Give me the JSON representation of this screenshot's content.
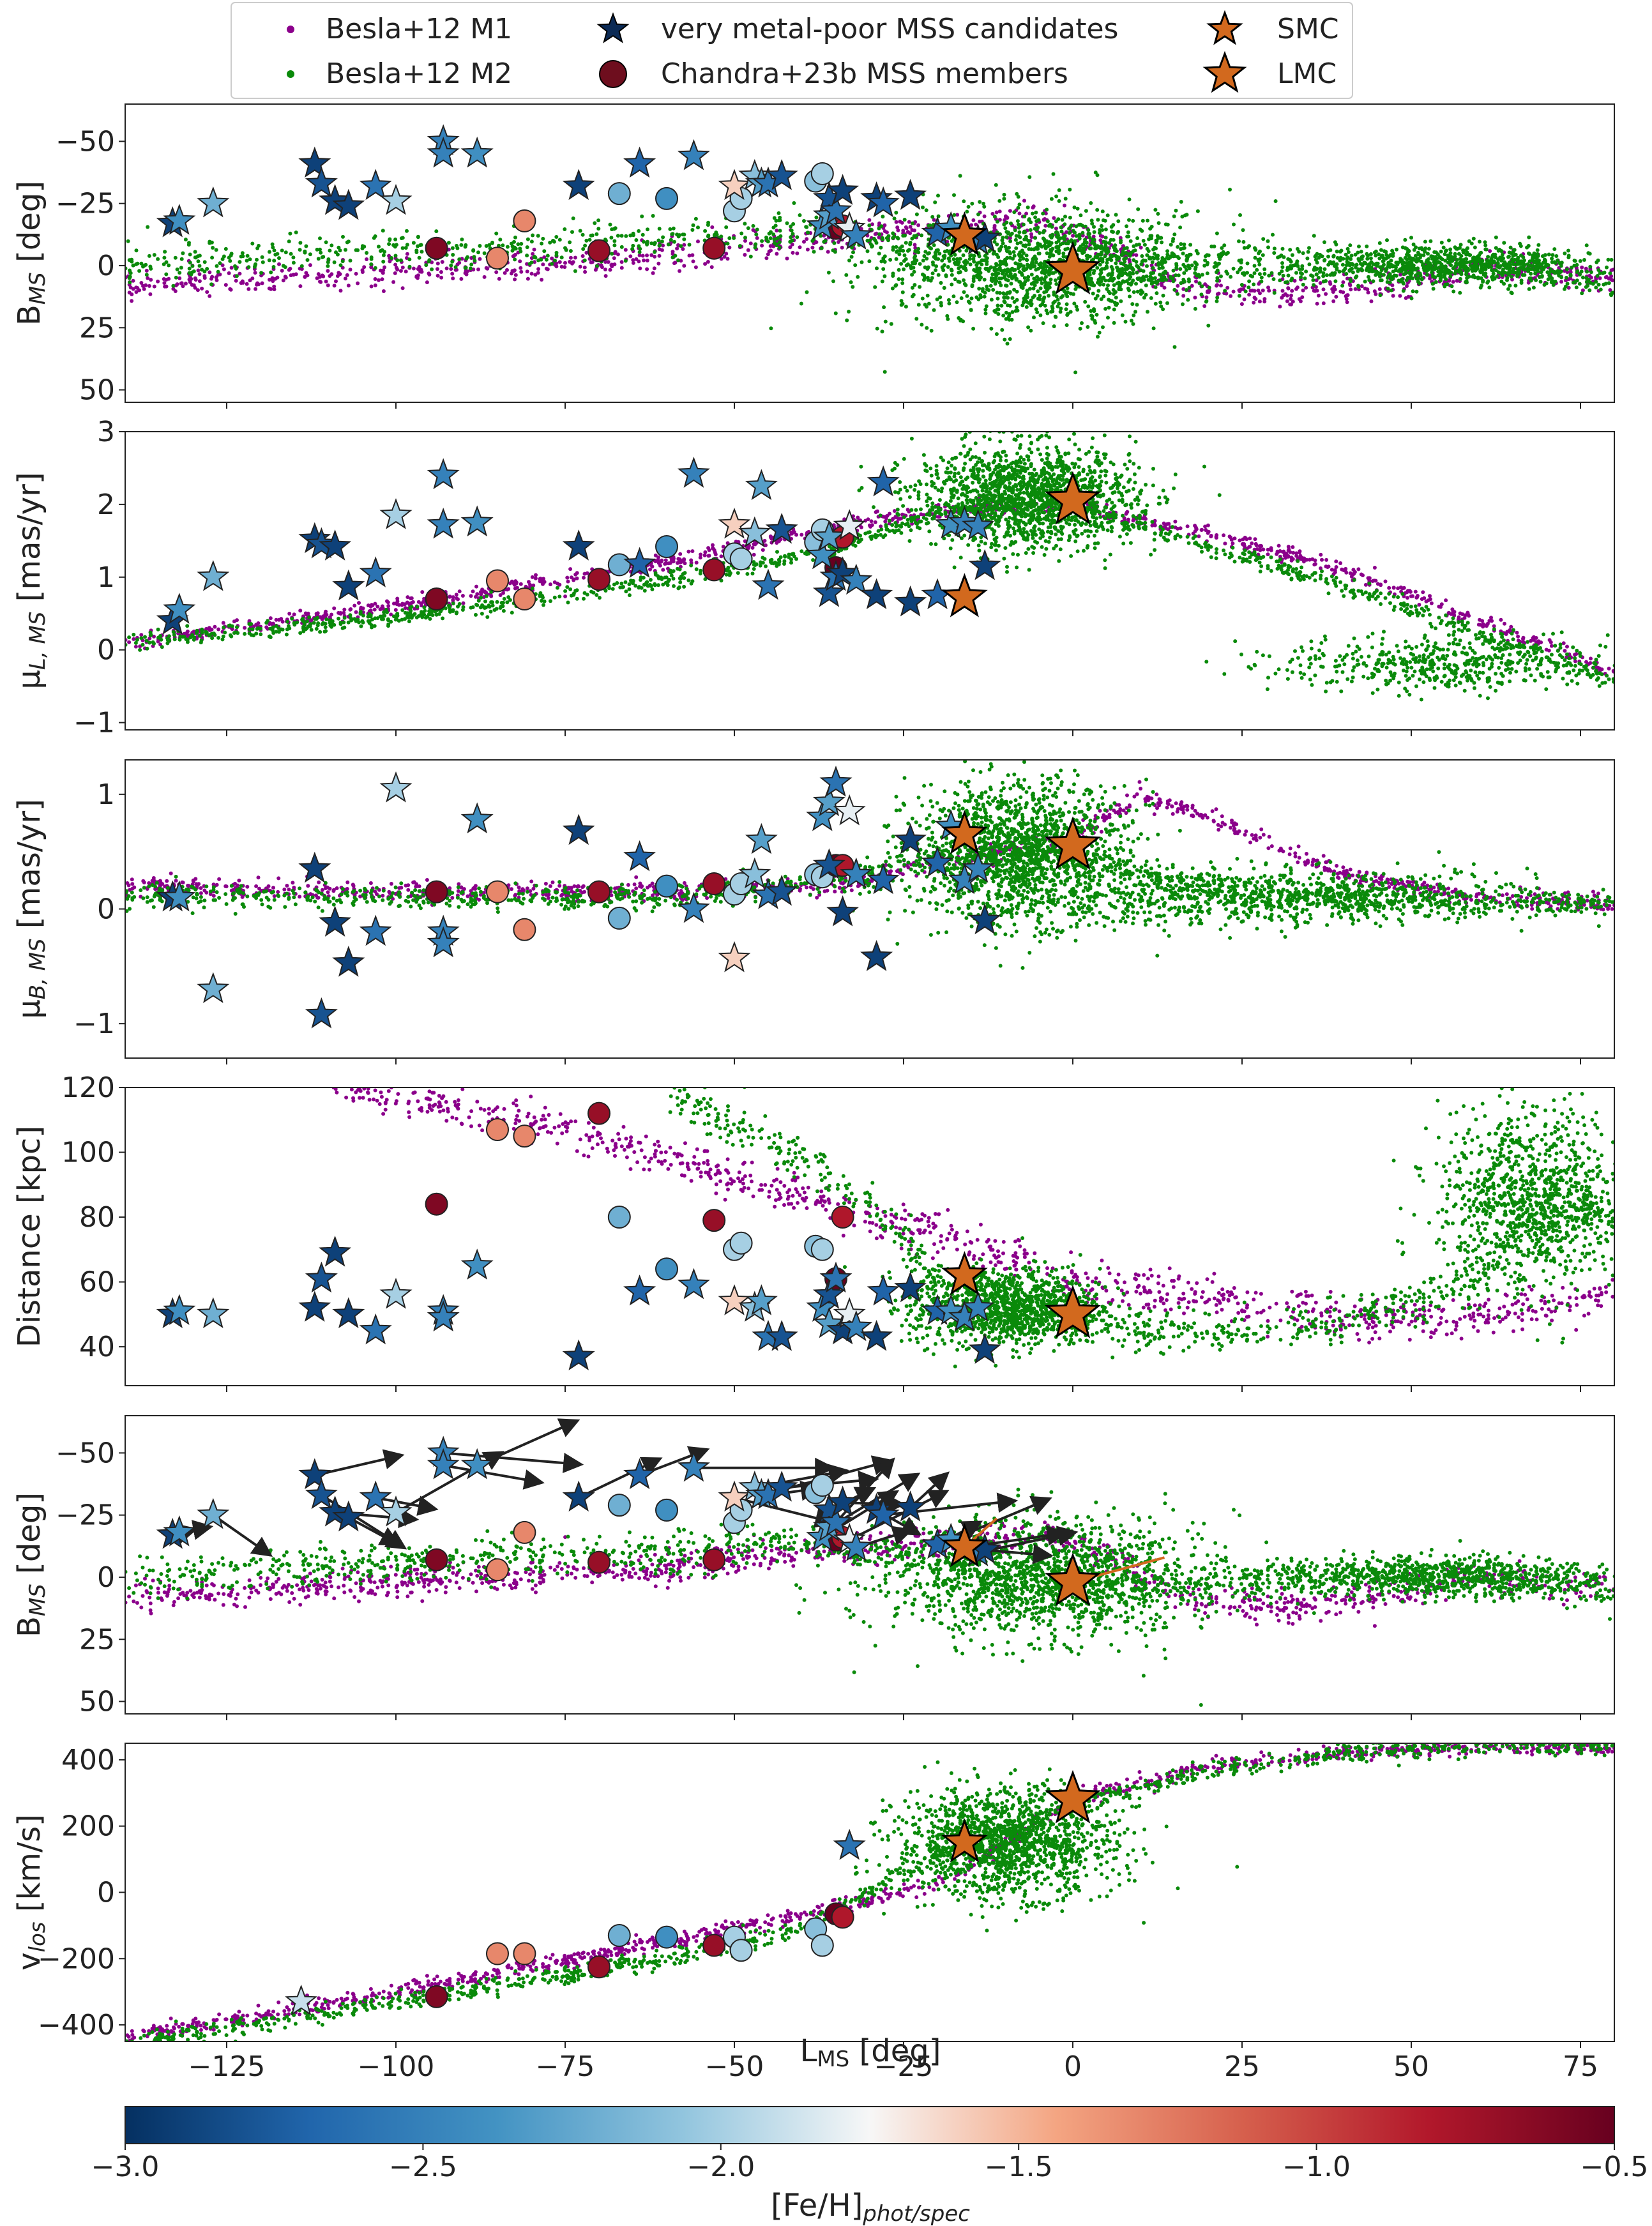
{
  "figure": {
    "legend": {
      "entries": [
        {
          "label": "Besla+12 M1",
          "marker": "dot",
          "color": "#8b008b"
        },
        {
          "label": "Besla+12 M2",
          "marker": "dot",
          "color": "#0a8a0a"
        },
        {
          "label": "very metal-poor MSS candidates",
          "marker": "star",
          "color": "#0b2a55"
        },
        {
          "label": "Chandra+23b MSS members",
          "marker": "circle",
          "color": "#6e0e1e"
        },
        {
          "label": "SMC",
          "marker": "star",
          "color": "#d2691e"
        },
        {
          "label": "LMC",
          "marker": "star",
          "color": "#d2691e"
        }
      ]
    },
    "x_axis": {
      "label": "L",
      "label_sub": "MS",
      "label_suffix": " [deg]",
      "ticks": [
        "−125",
        "−100",
        "−75",
        "−50",
        "−25",
        "0",
        "25",
        "50",
        "75"
      ]
    },
    "colorbar": {
      "label": "[Fe/H]",
      "label_sub": "phot/spec",
      "range": [
        -3.0,
        -0.5
      ],
      "ticks": [
        "−3.0",
        "−2.5",
        "−2.0",
        "−1.5",
        "−1.0",
        "−0.5"
      ],
      "colormap": "RdBu_r"
    },
    "panel_labels": [
      {
        "main": "B",
        "sub": "MS",
        "suffix": " [deg]"
      },
      {
        "main": "μ",
        "sub": "L, MS",
        "suffix": " [mas/yr]"
      },
      {
        "main": "μ",
        "sub": "B, MS",
        "suffix": " [mas/yr]"
      },
      {
        "main": "Distance [kpc]",
        "sub": "",
        "suffix": ""
      },
      {
        "main": "B",
        "sub": "MS",
        "suffix": " [deg]"
      },
      {
        "main": "v",
        "sub": "los",
        "suffix": " [km/s]"
      }
    ]
  },
  "chart_data": {
    "type": "scatter",
    "x": {
      "label": "L_MS [deg]",
      "range": [
        -140,
        80
      ],
      "ticks": [
        -125,
        -100,
        -75,
        -50,
        -25,
        0,
        25,
        50,
        75
      ]
    },
    "colors": {
      "M1": "#8b008b",
      "M2": "#0a8a0a",
      "star_edge": "#000000",
      "clouds": "#d2691e"
    },
    "clouds": {
      "SMC": {
        "L": -16
      },
      "LMC": {
        "L": 0
      }
    },
    "stars": [
      {
        "L": -133,
        "feh": -2.9,
        "B": -17,
        "muL": 0.4,
        "muB": 0.1,
        "dist": 50
      },
      {
        "L": -132,
        "feh": -2.4,
        "B": -18,
        "muL": 0.55,
        "muB": 0.1,
        "dist": 51
      },
      {
        "L": -127,
        "feh": -2.2,
        "B": -25,
        "muL": 1.0,
        "muB": -0.7,
        "dist": 50
      },
      {
        "L": -112,
        "feh": -2.9,
        "B": -41,
        "muL": 1.52,
        "muB": 0.35,
        "dist": 52
      },
      {
        "L": -111,
        "feh": -2.8,
        "B": -33,
        "muL": 1.45,
        "muB": -0.92,
        "dist": 61
      },
      {
        "L": -109,
        "feh": -2.9,
        "B": -26,
        "muL": 1.42,
        "muB": -0.12,
        "dist": 69
      },
      {
        "L": -107,
        "feh": -2.9,
        "B": -24,
        "muL": 0.87,
        "muB": -0.47,
        "dist": 50
      },
      {
        "L": -103,
        "feh": -2.6,
        "B": -32,
        "muL": 1.05,
        "muB": -0.2,
        "dist": 45
      },
      {
        "L": -100,
        "feh": -2.0,
        "B": -26,
        "muL": 1.85,
        "muB": 1.05,
        "dist": 56
      },
      {
        "L": -93,
        "feh": -2.5,
        "B": -50,
        "muL": 2.4,
        "muB": -0.2,
        "dist": 51
      },
      {
        "L": -93,
        "feh": -2.5,
        "B": -45,
        "muL": 1.72,
        "muB": -0.3,
        "dist": 49
      },
      {
        "L": -88,
        "feh": -2.4,
        "B": -45,
        "muL": 1.75,
        "muB": 0.78,
        "dist": 65
      },
      {
        "L": -73,
        "feh": -2.9,
        "B": -32,
        "muL": 1.42,
        "muB": 0.68,
        "dist": 37
      },
      {
        "L": -64,
        "feh": -2.7,
        "B": -41,
        "muL": 1.18,
        "muB": 0.45,
        "dist": 57
      },
      {
        "L": -56,
        "feh": -2.5,
        "B": -44,
        "muL": 2.42,
        "muB": 0.0,
        "dist": 59
      },
      {
        "L": -50,
        "feh": -1.6,
        "B": -32,
        "muL": 1.72,
        "muB": -0.43,
        "dist": 54
      },
      {
        "L": -47,
        "feh": -2.1,
        "B": -36,
        "muL": 1.6,
        "muB": 0.3,
        "dist": 52
      },
      {
        "L": -46,
        "feh": -2.3,
        "B": -33,
        "muL": 2.25,
        "muB": 0.6,
        "dist": 54
      },
      {
        "L": -45,
        "feh": -2.6,
        "B": -33,
        "muL": 0.88,
        "muB": 0.12,
        "dist": 43
      },
      {
        "L": -43,
        "feh": -2.8,
        "B": -36,
        "muL": 1.65,
        "muB": 0.15,
        "dist": 43
      },
      {
        "L": -37,
        "feh": -2.4,
        "B": -16,
        "muL": 1.3,
        "muB": 0.8,
        "dist": 52
      },
      {
        "L": -36,
        "feh": -2.3,
        "B": -20,
        "muL": 1.55,
        "muB": 0.93,
        "dist": 47
      },
      {
        "L": -36,
        "feh": -2.8,
        "B": -27,
        "muL": 0.78,
        "muB": 0.38,
        "dist": 56
      },
      {
        "L": -35,
        "feh": -2.6,
        "B": -22,
        "muL": 1.0,
        "muB": 1.1,
        "dist": 61
      },
      {
        "L": -34,
        "feh": -2.9,
        "B": -30,
        "muL": 1.05,
        "muB": -0.03,
        "dist": 45
      },
      {
        "L": -33,
        "feh": -1.8,
        "B": -15,
        "muL": 1.7,
        "muB": 0.85,
        "dist": 50
      },
      {
        "L": -32,
        "feh": -2.5,
        "B": -12,
        "muL": 0.95,
        "muB": 0.3,
        "dist": 46
      },
      {
        "L": -29,
        "feh": -2.9,
        "B": -27,
        "muL": 0.75,
        "muB": -0.42,
        "dist": 43
      },
      {
        "L": -28,
        "feh": -2.7,
        "B": -25,
        "muL": 2.3,
        "muB": 0.25,
        "dist": 57
      },
      {
        "L": -24,
        "feh": -2.9,
        "B": -28,
        "muL": 0.65,
        "muB": 0.6,
        "dist": 58
      },
      {
        "L": -20,
        "feh": -2.7,
        "B": -13,
        "muL": 0.75,
        "muB": 0.4,
        "dist": 51
      },
      {
        "L": -18,
        "feh": -2.4,
        "B": -15,
        "muL": 1.72,
        "muB": 0.72,
        "dist": 51
      },
      {
        "L": -16,
        "feh": -2.5,
        "B": -12,
        "muL": 1.75,
        "muB": 0.25,
        "dist": 49
      },
      {
        "L": -14,
        "feh": -2.5,
        "B": -10,
        "muL": 1.7,
        "muB": 0.35,
        "dist": 52
      },
      {
        "L": -13,
        "feh": -2.9,
        "B": -11,
        "muL": 1.15,
        "muB": -0.1,
        "dist": 39
      }
    ],
    "star_vlos": [
      {
        "L": -114,
        "feh": -1.9,
        "v": -330
      },
      {
        "L": -33,
        "feh": -2.6,
        "v": 140
      }
    ],
    "members": [
      {
        "L": -94,
        "feh": -0.6,
        "B": -7,
        "muL": 0.7,
        "muB": 0.15,
        "dist": 84,
        "v": -315
      },
      {
        "L": -85,
        "feh": -1.3,
        "B": -3,
        "muL": 0.95,
        "muB": 0.15,
        "dist": 107,
        "v": -185
      },
      {
        "L": -81,
        "feh": -1.3,
        "B": -18,
        "muL": 0.7,
        "muB": -0.18,
        "dist": 105,
        "v": -185
      },
      {
        "L": -70,
        "feh": -0.7,
        "B": -6,
        "muL": 0.97,
        "muB": 0.15,
        "dist": 112,
        "v": -225
      },
      {
        "L": -67,
        "feh": -2.2,
        "B": -29,
        "muL": 1.17,
        "muB": -0.08,
        "dist": 80,
        "v": -130
      },
      {
        "L": -60,
        "feh": -2.4,
        "B": -27,
        "muL": 1.42,
        "muB": 0.2,
        "dist": 64,
        "v": -135
      },
      {
        "L": -53,
        "feh": -0.7,
        "B": -7,
        "muL": 1.1,
        "muB": 0.22,
        "dist": 79,
        "v": -160
      },
      {
        "L": -50,
        "feh": -2.0,
        "B": -22,
        "muL": 1.32,
        "muB": 0.13,
        "dist": 70,
        "v": -135
      },
      {
        "L": -49,
        "feh": -2.0,
        "B": -27,
        "muL": 1.25,
        "muB": 0.22,
        "dist": 72,
        "v": -175
      },
      {
        "L": -38,
        "feh": -2.1,
        "B": -34,
        "muL": 1.48,
        "muB": 0.3,
        "dist": 71,
        "v": -110
      },
      {
        "L": -37,
        "feh": -2.0,
        "B": -37,
        "muL": 1.65,
        "muB": 0.28,
        "dist": 70,
        "v": -160
      },
      {
        "L": -35,
        "feh": -0.5,
        "B": -15,
        "muL": 1.13,
        "muB": 0.38,
        "dist": 61,
        "v": -65
      },
      {
        "L": -34,
        "feh": -0.8,
        "B": -16,
        "muL": 1.55,
        "muB": 0.38,
        "dist": 80,
        "v": -75
      }
    ],
    "smc": {
      "L": -16,
      "B": -12,
      "muL": 0.72,
      "muB": 0.65,
      "dist": 62,
      "v": 150
    },
    "lmc": {
      "L": 0,
      "B": 2,
      "muL": 2.05,
      "muB": 0.55,
      "dist": 50,
      "v": 280
    },
    "panels": [
      {
        "quantity": "B_MS",
        "ylabel": "B_MS [deg]",
        "yrange": [
          55,
          -65
        ],
        "ticks": [
          -50,
          -25,
          0,
          25,
          50
        ]
      },
      {
        "quantity": "mu_L,MS",
        "ylabel": "μ_L,MS [mas/yr]",
        "yrange": [
          -1.1,
          3.0
        ],
        "ticks": [
          -1,
          0,
          1,
          2,
          3
        ]
      },
      {
        "quantity": "mu_B,MS",
        "ylabel": "μ_B,MS [mas/yr]",
        "yrange": [
          -1.3,
          1.3
        ],
        "ticks": [
          -1,
          0,
          1
        ]
      },
      {
        "quantity": "distance",
        "ylabel": "Distance [kpc]",
        "yrange": [
          28,
          120
        ],
        "ticks": [
          40,
          60,
          80,
          100,
          120
        ]
      },
      {
        "quantity": "B_MS_vectors",
        "ylabel": "B_MS [deg]",
        "yrange": [
          55,
          -65
        ],
        "ticks": [
          -50,
          -25,
          0,
          25,
          50
        ]
      },
      {
        "quantity": "v_los",
        "ylabel": "v_los [km/s]",
        "yrange": [
          -450,
          450
        ],
        "ticks": [
          -400,
          -200,
          0,
          200,
          400
        ]
      }
    ]
  }
}
